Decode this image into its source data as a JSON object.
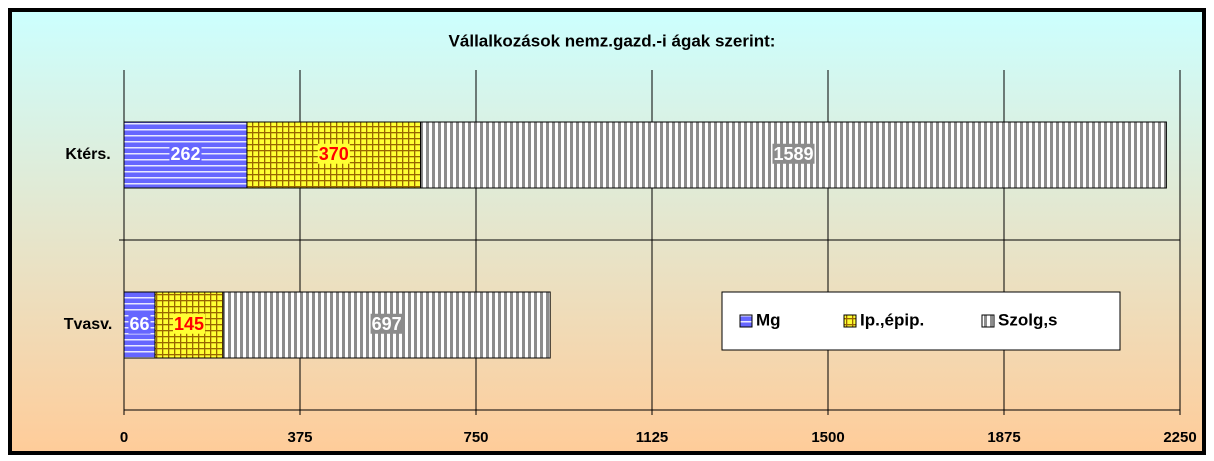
{
  "chart_data": {
    "type": "stacked_bar_horizontal",
    "title": "Vállalkozások nemz.gazd.-i ágak  szerint:",
    "categories": [
      "Ktérs.",
      "Tvasv."
    ],
    "series": [
      {
        "name": "Mg",
        "color": "#6666ff",
        "values": [
          262,
          66
        ]
      },
      {
        "name": "Ip.,épip.",
        "color": "#ffff33",
        "values": [
          370,
          145
        ]
      },
      {
        "name": "Szolg,s",
        "color": "#c0c0c0",
        "values": [
          1589,
          697
        ]
      }
    ],
    "xlim": [
      0,
      2250
    ],
    "xticks": [
      0,
      375,
      750,
      1125,
      1500,
      1875,
      2250
    ],
    "grid": true,
    "legend_position": "lower right"
  }
}
